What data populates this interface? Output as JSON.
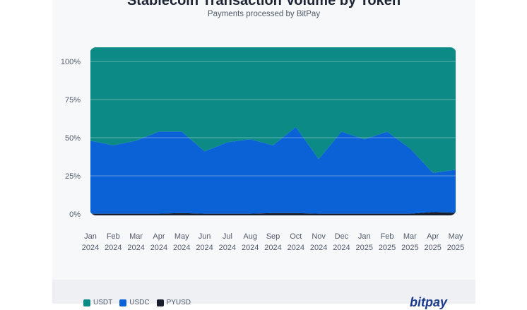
{
  "chart_data": {
    "type": "area",
    "title": "Stablecoin Transaction Volume by Token",
    "subtitle": "Payments processed by BitPay",
    "categories": [
      [
        "Jan",
        "2024"
      ],
      [
        "Feb",
        "2024"
      ],
      [
        "Mar",
        "2024"
      ],
      [
        "Apr",
        "2024"
      ],
      [
        "May",
        "2024"
      ],
      [
        "Jun",
        "2024"
      ],
      [
        "Jul",
        "2024"
      ],
      [
        "Aug",
        "2024"
      ],
      [
        "Sep",
        "2024"
      ],
      [
        "Oct",
        "2024"
      ],
      [
        "Nov",
        "2024"
      ],
      [
        "Dec",
        "2024"
      ],
      [
        "Jan",
        "2025"
      ],
      [
        "Feb",
        "2025"
      ],
      [
        "Mar",
        "2025"
      ],
      [
        "Apr",
        "2025"
      ],
      [
        "May",
        "2025"
      ]
    ],
    "y_ticks": [
      "0%",
      "25%",
      "50%",
      "75%",
      "100%"
    ],
    "ylim": [
      0,
      100
    ],
    "stacked": true,
    "grid": true,
    "series": [
      {
        "name": "PYUSD",
        "color": "#1a1f2e",
        "values": [
          0.2,
          0.2,
          0.2,
          0.2,
          0.6,
          0.2,
          0.2,
          0.2,
          0.6,
          0.6,
          0.2,
          0.2,
          0.2,
          0.2,
          0.2,
          1.2,
          0.8
        ]
      },
      {
        "name": "USDC",
        "color": "#0a62d6",
        "values": [
          47.8,
          44.8,
          47.8,
          53.8,
          53.4,
          40.8,
          46.8,
          48.8,
          44.4,
          56.4,
          35.8,
          53.8,
          48.8,
          53.8,
          42.8,
          25.8,
          28.2
        ]
      },
      {
        "name": "USDT",
        "color": "#0b8a86",
        "values": [
          52,
          55,
          52,
          46,
          46,
          59,
          53,
          51,
          55,
          43,
          64,
          46,
          51,
          46,
          57,
          73,
          71
        ]
      }
    ],
    "legend_position": "bottom-left"
  },
  "brand": {
    "text": "bitpay",
    "color": "#1a3b8a"
  }
}
